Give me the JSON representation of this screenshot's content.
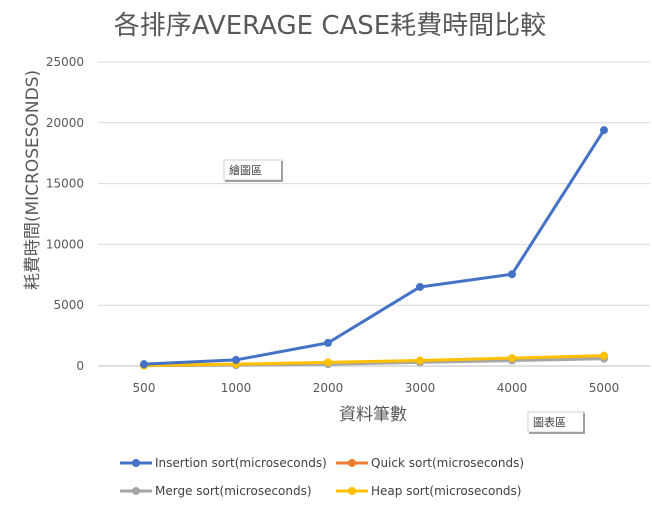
{
  "chart_data": {
    "type": "line",
    "title": "各排序AVERAGE CASE耗費時間比較",
    "xlabel": "資料筆數",
    "ylabel": "耗費時間(MICROSESONDS)",
    "categories": [
      "500",
      "1000",
      "2000",
      "3000",
      "4000",
      "5000"
    ],
    "ylim": [
      0,
      25000
    ],
    "yticks": [
      0,
      5000,
      10000,
      15000,
      20000,
      25000
    ],
    "ytick_labels": [
      "0",
      "5000",
      "10000",
      "15000",
      "20000",
      "25000"
    ],
    "grid": true,
    "legend_position": "bottom",
    "series": [
      {
        "name": "Insertion sort(microseconds)",
        "color": "#4472c4",
        "values": [
          150,
          500,
          1900,
          6500,
          7550,
          19400
        ]
      },
      {
        "name": "Quick sort(microseconds)",
        "color": "#ed7d31",
        "values": [
          40,
          90,
          200,
          350,
          500,
          650
        ]
      },
      {
        "name": "Merge sort(microseconds)",
        "color": "#a5a5a5",
        "values": [
          30,
          70,
          150,
          300,
          450,
          600
        ]
      },
      {
        "name": "Heap sort(microseconds)",
        "color": "#ffc000",
        "values": [
          50,
          150,
          300,
          450,
          650,
          850
        ]
      }
    ],
    "annotations": {
      "plot_area_tag": "繪圖區",
      "chart_area_tag": "圖表區"
    }
  }
}
